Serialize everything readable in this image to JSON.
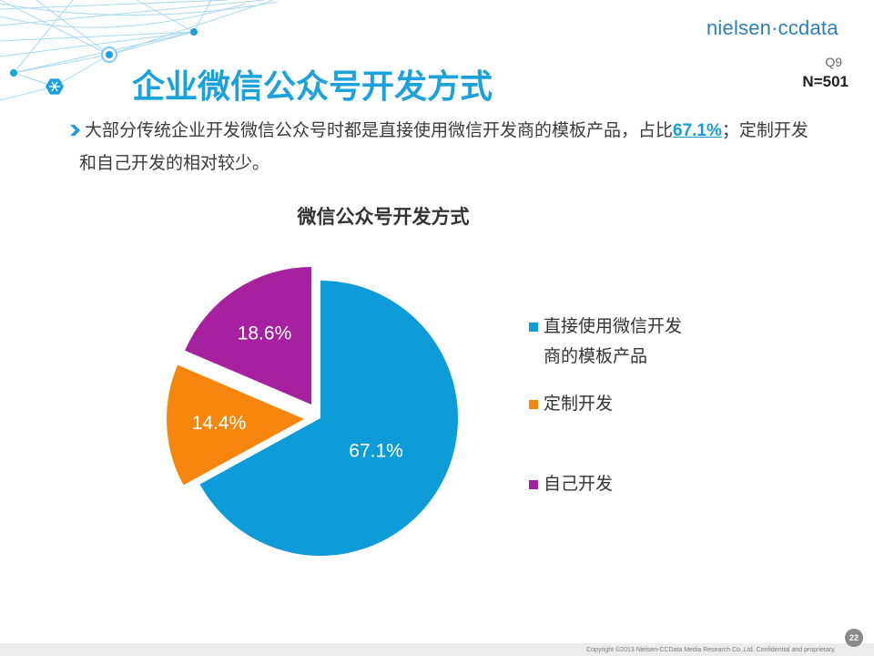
{
  "logo": {
    "text": "nielsen·ccdata"
  },
  "question": {
    "code": "Q9",
    "sample": "N=501"
  },
  "slide": {
    "title": "企业微信公众号开发方式"
  },
  "summary": {
    "line1_before": "大部分传统企业开发微信公众号时都是直接使用微信开发商的模板产品，占比",
    "highlight": "67.1%",
    "line1_after": "；定制开发",
    "line2": "和自己开发的相对较少。"
  },
  "chart_data": {
    "type": "pie",
    "title": "微信公众号开发方式",
    "categories": [
      "直接使用微信开发商的模板产品",
      "定制开发",
      "自己开发"
    ],
    "values": [
      67.1,
      14.4,
      18.6
    ],
    "labels": [
      "67.1%",
      "14.4%",
      "18.6%"
    ],
    "colors": [
      "#0e9cd8",
      "#f7860f",
      "#a6219f"
    ],
    "exploded": [
      false,
      true,
      true
    ],
    "legend": "right"
  },
  "footer": {
    "copyright": "Copyright ©2013 Nielsen-CCData Media Research Co.,Ltd. Confidential and proprietary.",
    "page": "22"
  },
  "colors": {
    "title": "#1ba1db",
    "accent": "#1a9bd7",
    "decoration": "#a8d8f0"
  },
  "icons": {
    "bullet": "bullet-arrow-icon",
    "decoration": "network-decoration"
  }
}
